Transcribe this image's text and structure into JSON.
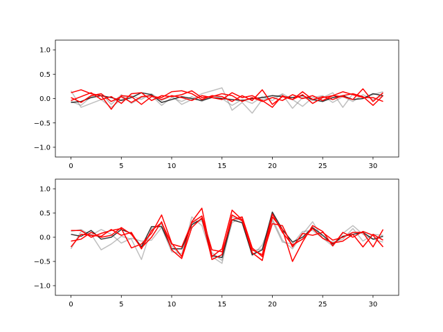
{
  "colors": {
    "black_series": "#000000",
    "gray_series": "#7f7f7f",
    "red_series": "#ff0000",
    "axes": "#000000",
    "background": "#ffffff"
  },
  "chart_data": [
    {
      "type": "line",
      "title": "",
      "xlabel": "",
      "ylabel": "",
      "xlim": [
        -1.55,
        32.55
      ],
      "ylim": [
        -1.2,
        1.2
      ],
      "grid": false,
      "xticks": [
        0,
        5,
        10,
        15,
        20,
        25,
        30
      ],
      "xtick_labels": [
        "0",
        "5",
        "10",
        "15",
        "20",
        "25",
        "30"
      ],
      "yticks": [
        1.0,
        0.5,
        0.0,
        -0.5,
        -1.0
      ],
      "ytick_labels": [
        "1.0",
        "0.5",
        "0.0",
        "−0.5",
        "−1.0"
      ],
      "x": [
        0,
        1,
        2,
        3,
        4,
        5,
        6,
        7,
        8,
        9,
        10,
        11,
        12,
        13,
        14,
        15,
        16,
        17,
        18,
        19,
        20,
        21,
        22,
        23,
        24,
        25,
        26,
        27,
        28,
        29,
        30,
        31
      ],
      "series": [
        {
          "color": "gray",
          "values": [
            0.16,
            -0.18,
            -0.1,
            -0.02,
            -0.18,
            -0.02,
            0.06,
            -0.02,
            0.1,
            -0.04,
            0.06,
            -0.12,
            -0.02,
            0.1,
            0.16,
            0.22,
            -0.24,
            -0.08,
            -0.3,
            -0.02,
            0.02,
            0.08,
            -0.2,
            0.02,
            -0.04,
            0.02,
            0.12,
            -0.18,
            0.1,
            0.02,
            0.08,
            0.14
          ]
        },
        {
          "color": "gray",
          "values": [
            -0.06,
            -0.14,
            0.04,
            0.1,
            -0.12,
            0.08,
            -0.1,
            0.02,
            0.06,
            -0.14,
            0.02,
            -0.06,
            0.04,
            -0.06,
            0.06,
            0.0,
            -0.14,
            -0.02,
            -0.1,
            0.04,
            -0.04,
            0.1,
            -0.02,
            -0.16,
            0.02,
            0.06,
            -0.08,
            0.04,
            -0.06,
            0.08,
            -0.02,
            0.06
          ]
        },
        {
          "color": "black",
          "values": [
            -0.08,
            -0.06,
            0.02,
            0.06,
            0.02,
            -0.04,
            0.02,
            0.12,
            0.08,
            -0.08,
            -0.02,
            0.04,
            0.0,
            -0.04,
            0.02,
            0.0,
            -0.02,
            -0.04,
            0.0,
            0.02,
            0.06,
            0.04,
            0.02,
            0.06,
            -0.02,
            -0.06,
            0.02,
            0.06,
            -0.02,
            0.0,
            0.1,
            0.06
          ]
        },
        {
          "color": "red",
          "values": [
            0.12,
            0.18,
            0.1,
            0.06,
            -0.22,
            0.06,
            0.04,
            -0.12,
            0.04,
            0.02,
            0.14,
            0.16,
            0.1,
            -0.02,
            0.06,
            0.04,
            -0.06,
            0.06,
            -0.04,
            0.18,
            -0.12,
            0.04,
            -0.02,
            0.08,
            -0.1,
            0.02,
            0.06,
            0.04,
            -0.02,
            0.2,
            -0.06,
            0.12
          ]
        },
        {
          "color": "red",
          "values": [
            -0.04,
            0.04,
            0.12,
            -0.02,
            0.04,
            -0.1,
            0.1,
            0.12,
            -0.04,
            0.06,
            0.04,
            0.08,
            0.16,
            0.02,
            0.04,
            0.1,
            0.06,
            -0.06,
            0.02,
            -0.06,
            0.02,
            -0.04,
            0.08,
            0.0,
            0.06,
            -0.04,
            0.06,
            0.14,
            0.08,
            0.02,
            0.02,
            -0.06
          ]
        },
        {
          "color": "red",
          "values": [
            0.02,
            -0.08,
            0.06,
            0.1,
            -0.06,
            0.04,
            -0.08,
            0.04,
            0.06,
            -0.02,
            0.06,
            0.02,
            -0.04,
            0.06,
            0.02,
            -0.02,
            0.12,
            0.02,
            0.06,
            -0.04,
            -0.18,
            0.06,
            -0.02,
            0.14,
            -0.02,
            0.04,
            -0.02,
            0.06,
            0.1,
            0.04,
            -0.14,
            0.06
          ]
        }
      ]
    },
    {
      "type": "line",
      "title": "",
      "xlabel": "",
      "ylabel": "",
      "xlim": [
        -1.55,
        32.55
      ],
      "ylim": [
        -1.2,
        1.2
      ],
      "grid": false,
      "xticks": [
        0,
        5,
        10,
        15,
        20,
        25,
        30
      ],
      "xtick_labels": [
        "0",
        "5",
        "10",
        "15",
        "20",
        "25",
        "30"
      ],
      "yticks": [
        1.0,
        0.5,
        0.0,
        -0.5,
        -1.0
      ],
      "ytick_labels": [
        "1.0",
        "0.5",
        "0.0",
        "−0.5",
        "−1.0"
      ],
      "x": [
        0,
        1,
        2,
        3,
        4,
        5,
        6,
        7,
        8,
        9,
        10,
        11,
        12,
        13,
        14,
        15,
        16,
        17,
        18,
        19,
        20,
        21,
        22,
        23,
        24,
        25,
        26,
        27,
        28,
        29,
        30,
        31
      ],
      "series": [
        {
          "color": "gray",
          "values": [
            -0.24,
            0.12,
            0.06,
            -0.26,
            -0.14,
            0.02,
            -0.04,
            -0.46,
            0.18,
            0.26,
            -0.18,
            -0.4,
            0.42,
            0.24,
            -0.4,
            -0.54,
            0.42,
            0.34,
            -0.38,
            -0.16,
            0.38,
            -0.06,
            -0.24,
            0.06,
            0.32,
            -0.02,
            -0.18,
            0.08,
            0.24,
            0.06,
            -0.04,
            -0.1
          ]
        },
        {
          "color": "gray",
          "values": [
            0.12,
            0.16,
            0.04,
            0.16,
            0.06,
            -0.12,
            -0.02,
            -0.08,
            -0.06,
            0.2,
            -0.3,
            -0.34,
            0.3,
            0.34,
            -0.32,
            -0.48,
            0.3,
            0.42,
            -0.28,
            -0.24,
            0.34,
            -0.1,
            -0.14,
            0.12,
            0.14,
            -0.02,
            -0.1,
            -0.04,
            0.18,
            -0.08,
            0.06,
            0.04
          ]
        },
        {
          "color": "black",
          "values": [
            0.06,
            0.02,
            0.14,
            -0.04,
            0.0,
            0.16,
            0.08,
            -0.2,
            0.22,
            0.22,
            -0.24,
            -0.24,
            0.26,
            0.38,
            -0.38,
            -0.42,
            0.36,
            0.3,
            -0.36,
            -0.26,
            0.52,
            0.16,
            -0.1,
            0.0,
            0.2,
            0.04,
            -0.14,
            0.02,
            0.06,
            0.1,
            -0.04,
            0.02
          ]
        },
        {
          "color": "red",
          "values": [
            0.14,
            0.14,
            0.0,
            0.08,
            0.14,
            0.18,
            -0.22,
            -0.14,
            0.08,
            0.46,
            -0.12,
            -0.4,
            0.32,
            0.6,
            -0.4,
            -0.24,
            0.56,
            0.36,
            -0.32,
            -0.48,
            0.42,
            0.16,
            -0.5,
            -0.1,
            0.24,
            0.12,
            -0.18,
            0.1,
            0.0,
            0.12,
            0.04,
            -0.2
          ]
        },
        {
          "color": "red",
          "values": [
            -0.2,
            0.06,
            0.04,
            0.02,
            0.16,
            0.04,
            0.1,
            -0.24,
            0.14,
            0.3,
            -0.14,
            -0.2,
            0.3,
            0.44,
            -0.26,
            -0.3,
            0.36,
            0.42,
            -0.22,
            -0.4,
            0.28,
            0.24,
            -0.2,
            0.08,
            0.04,
            0.1,
            -0.06,
            0.0,
            0.1,
            0.1,
            -0.2,
            0.16
          ]
        },
        {
          "color": "red",
          "values": [
            -0.08,
            -0.04,
            0.1,
            0.0,
            0.04,
            0.2,
            0.06,
            -0.22,
            0.0,
            0.32,
            -0.26,
            -0.44,
            0.2,
            0.4,
            -0.46,
            -0.36,
            0.46,
            0.34,
            -0.26,
            -0.36,
            0.48,
            0.1,
            -0.16,
            -0.04,
            0.18,
            -0.02,
            -0.12,
            -0.08,
            0.06,
            -0.2,
            0.06,
            -0.06
          ]
        }
      ]
    }
  ]
}
